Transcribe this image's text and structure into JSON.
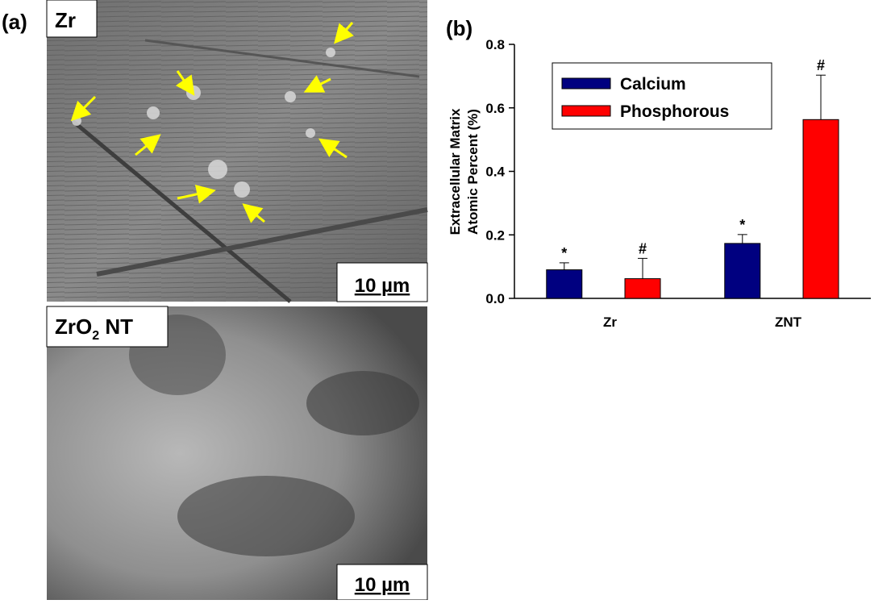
{
  "panel_a": {
    "label": "(a)",
    "images": [
      {
        "label": [
          "Zr"
        ],
        "scale_bar": "10 µm"
      },
      {
        "label": [
          "ZrO",
          "2",
          " NT"
        ],
        "scale_bar": "10 µm"
      }
    ]
  },
  "chart_data": {
    "type": "bar",
    "panel_label": "(b)",
    "y_label": [
      "Extracellular Matrix",
      "Atomic Percent (%)"
    ],
    "categories": [
      "Zr",
      "ZNT"
    ],
    "series": [
      {
        "name": "Calcium",
        "color": "#000080",
        "values": [
          0.09,
          0.173
        ],
        "errors": [
          0.022,
          0.028
        ],
        "annotations": [
          "*",
          "*"
        ]
      },
      {
        "name": "Phosphorous",
        "color": "#ff0000",
        "values": [
          0.062,
          0.563
        ],
        "errors": [
          0.064,
          0.14
        ],
        "annotations": [
          "#",
          "#"
        ]
      }
    ],
    "ylim": [
      0,
      0.8
    ],
    "yticks": [
      {
        "value": 0,
        "label": "0.0"
      },
      0.2,
      0.4,
      0.6,
      0.8
    ],
    "legend": "top-left"
  }
}
